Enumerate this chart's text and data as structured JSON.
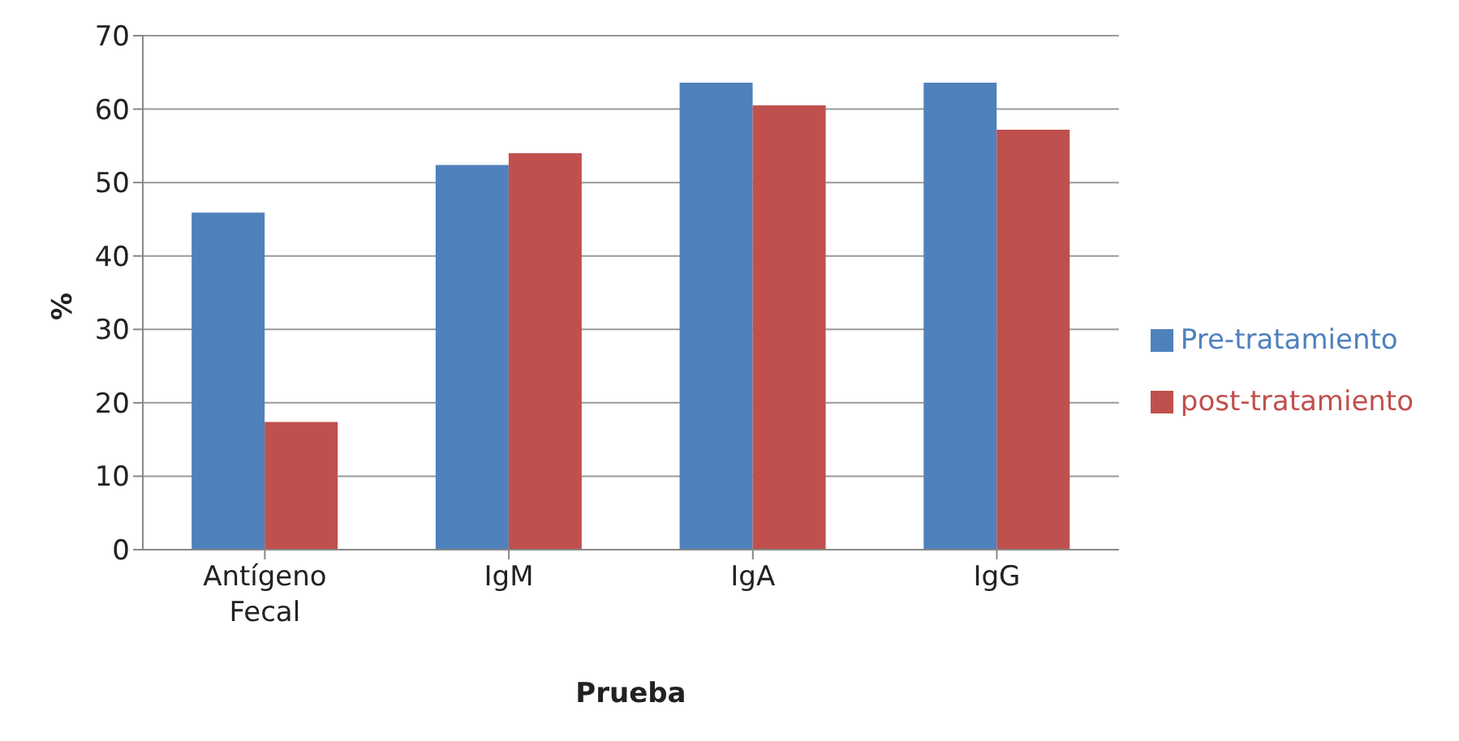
{
  "chart_data": {
    "type": "bar",
    "xlabel": "Prueba",
    "ylabel": "%",
    "categories": [
      "Antígeno Fecal",
      "IgM",
      "IgA",
      "IgG"
    ],
    "series": [
      {
        "name": "Pre-tratamiento",
        "color": "#4f81bd",
        "values": [
          45.9,
          52.4,
          63.6,
          63.6
        ]
      },
      {
        "name": "post-tratamiento",
        "color": "#c0504d",
        "values": [
          17.4,
          54.0,
          60.5,
          57.2
        ]
      }
    ],
    "ylim": [
      0,
      70
    ],
    "yticks": [
      0,
      10,
      20,
      30,
      40,
      50,
      60,
      70
    ],
    "grid": "y",
    "legend": "right"
  }
}
